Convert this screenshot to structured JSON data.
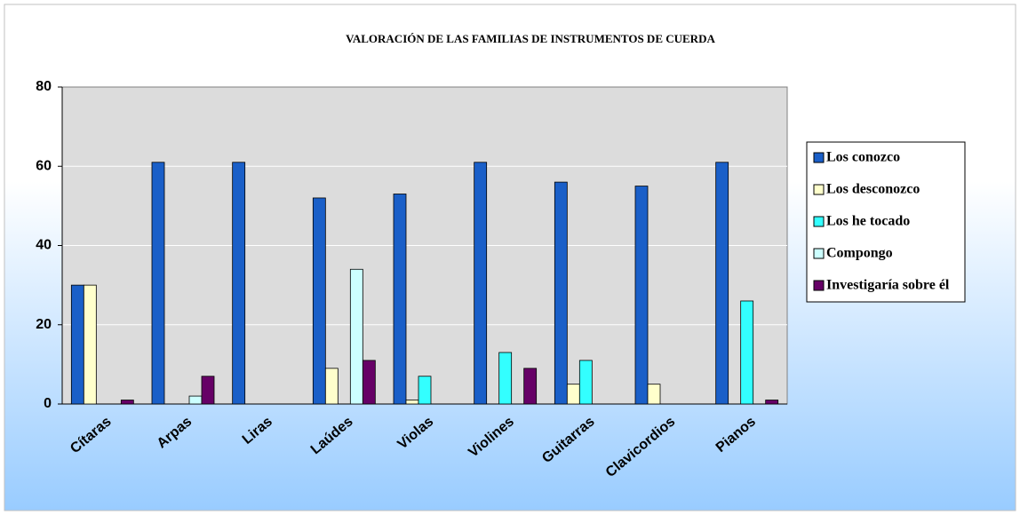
{
  "chart_data": {
    "type": "bar",
    "title": "VALORACIÓN DE LAS FAMILIAS DE INSTRUMENTOS DE CUERDA",
    "categories": [
      "Cítaras",
      "Arpas",
      "Liras",
      "Laúdes",
      "Violas",
      "Violines",
      "Guitarras",
      "Clavicordios",
      "Pianos"
    ],
    "series": [
      {
        "name": "Los conozco",
        "color": "#1a5fc8",
        "values": [
          30,
          61,
          61,
          52,
          53,
          61,
          56,
          55,
          61
        ]
      },
      {
        "name": "Los desconozco",
        "color": "#ffffcc",
        "values": [
          30,
          0,
          0,
          9,
          1,
          0,
          5,
          5,
          0
        ]
      },
      {
        "name": "Los he tocado",
        "color": "#33ffff",
        "values": [
          0,
          0,
          0,
          0,
          7,
          13,
          11,
          0,
          26
        ]
      },
      {
        "name": "Compongo",
        "color": "#ccffff",
        "values": [
          0,
          2,
          0,
          34,
          0,
          0,
          0,
          0,
          0
        ]
      },
      {
        "name": "Investigaría sobre él",
        "color": "#660066",
        "values": [
          1,
          7,
          0,
          11,
          0,
          9,
          0,
          0,
          1
        ]
      }
    ],
    "ylim": [
      0,
      80
    ],
    "yticks": [
      0,
      20,
      40,
      60,
      80
    ],
    "grid": true,
    "legend": "right"
  }
}
